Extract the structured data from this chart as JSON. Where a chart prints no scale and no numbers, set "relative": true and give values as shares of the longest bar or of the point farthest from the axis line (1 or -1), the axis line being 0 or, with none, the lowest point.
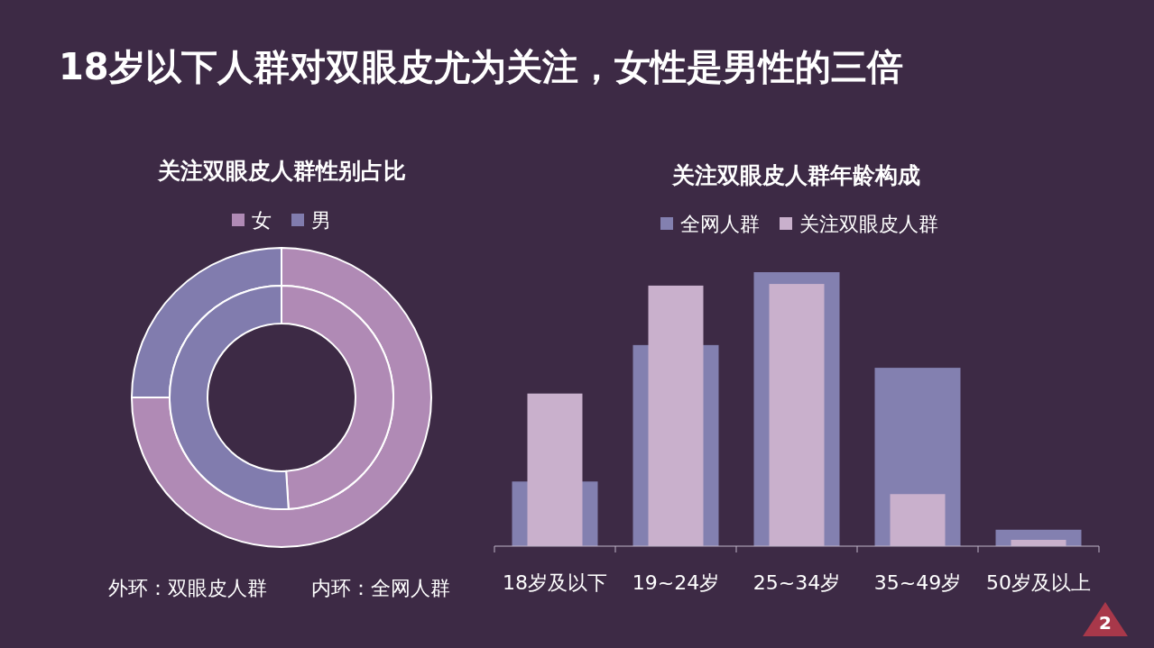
{
  "chart_data": [
    {
      "type": "donut",
      "title": "18岁以下人群对双眼皮尤为关注，女性是男性的三倍",
      "subtitle": "关注双眼皮人群性别占比",
      "categories": [
        "女",
        "男"
      ],
      "colors": [
        "#b08ab5",
        "#817cae"
      ],
      "legend": "top",
      "series": [
        {
          "values": [
            75,
            25
          ]
        },
        {
          "values": [
            49,
            51
          ]
        }
      ],
      "annotations": [
        "外环：双眼皮人群",
        "内环：全网人群"
      ]
    },
    {
      "type": "bar",
      "title": "关注双眼皮人群年龄构成",
      "categories": [
        "18岁及以下",
        "19~24岁",
        "25~34岁",
        "35~49岁",
        "50岁及以上"
      ],
      "relative": true,
      "legend": "top",
      "series": [
        {
          "name": "全网人群",
          "color": "#8380b0",
          "values": [
            0.236,
            0.734,
            1,
            0.651,
            0.06
          ]
        },
        {
          "name": "关注双眼皮人群",
          "color": "#c9b0cc",
          "values": [
            0.557,
            0.951,
            0.957,
            0.19,
            0.023
          ]
        }
      ],
      "annotations": [
        "2"
      ]
    }
  ]
}
